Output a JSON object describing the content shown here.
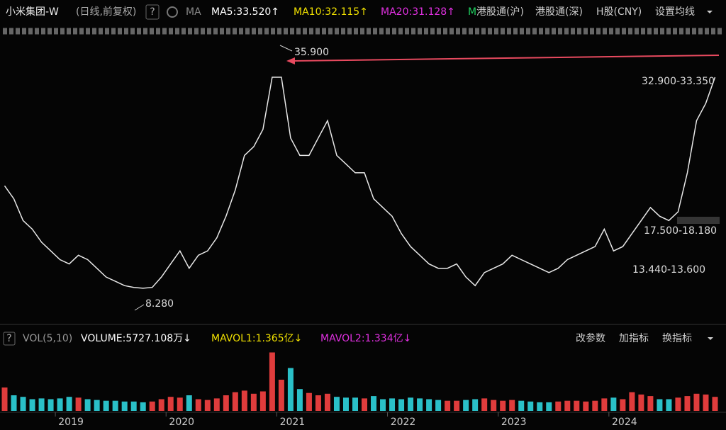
{
  "header": {
    "title": "小米集团-W",
    "mode": "(日线,前复权)",
    "help": "?",
    "ma_label": "MA",
    "ma5": "MA5:33.520↑",
    "ma10": "MA10:32.115↑",
    "ma20": "MA20:31.128↑",
    "ma60": "M",
    "links": [
      "港股通(沪)",
      "港股通(深)",
      "H股(CNY)",
      "设置均线"
    ]
  },
  "volume_header": {
    "help": "?",
    "label": "VOL(5,10)",
    "volume": "VOLUME:5727.108万↓",
    "mavol1": "MAVOL1:1.365亿↓",
    "mavol2": "MAVOL2:1.334亿↓",
    "buttons": [
      "改参数",
      "加指标",
      "换指标"
    ]
  },
  "chart_data": [
    {
      "type": "line",
      "color": "#e8e8e8",
      "ylim": [
        6,
        37
      ],
      "categories": [
        null,
        null,
        null,
        null,
        null,
        null,
        "2019",
        null,
        null,
        null,
        null,
        null,
        null,
        null,
        null,
        null,
        null,
        null,
        "2020",
        null,
        null,
        null,
        null,
        null,
        null,
        null,
        null,
        null,
        null,
        null,
        "2021",
        null,
        null,
        null,
        null,
        null,
        null,
        null,
        null,
        null,
        null,
        null,
        "2022",
        null,
        null,
        null,
        null,
        null,
        null,
        null,
        null,
        null,
        null,
        null,
        "2023",
        null,
        null,
        null,
        null,
        null,
        null,
        null,
        null,
        null,
        null,
        null,
        "2024",
        null,
        null,
        null,
        null,
        null,
        null,
        null,
        null,
        null,
        null,
        null
      ],
      "values": [
        20.5,
        19,
        16.5,
        15.5,
        14,
        13,
        12,
        11.5,
        12.5,
        12,
        11,
        10,
        9.5,
        9,
        8.8,
        8.7,
        8.8,
        10,
        11.5,
        13,
        11,
        12.5,
        13,
        14.5,
        17,
        20,
        24,
        25,
        27,
        33,
        33,
        26,
        24,
        24,
        26,
        28,
        24,
        23,
        22,
        22,
        19,
        18,
        17,
        15,
        13.5,
        12.5,
        11.5,
        11,
        11,
        11.5,
        10,
        9,
        10.5,
        11,
        11.5,
        12.5,
        12,
        11.5,
        11,
        10.5,
        11,
        12,
        12.5,
        13,
        13.5,
        15.5,
        13,
        13.5,
        15,
        16.5,
        18,
        17,
        16.5,
        17.5,
        22,
        28,
        30,
        33
      ],
      "annotations": [
        "35.900",
        "8.280",
        "32.900-33.350",
        "17.500-18.180",
        "13.440-13.600"
      ]
    },
    {
      "type": "bar",
      "ylim": [
        0,
        8
      ],
      "values": [
        3,
        2,
        1.8,
        1.5,
        1.6,
        1.5,
        1.6,
        1.8,
        1.7,
        1.5,
        1.4,
        1.3,
        1.3,
        1.2,
        1.2,
        1.1,
        1.2,
        1.5,
        1.8,
        1.7,
        2,
        1.5,
        1.4,
        1.6,
        2,
        2.4,
        2.6,
        2.2,
        2.5,
        7.5,
        4,
        5.5,
        2.8,
        2.3,
        2,
        2.2,
        1.8,
        1.7,
        1.7,
        1.6,
        1.9,
        1.5,
        1.6,
        1.5,
        1.7,
        1.6,
        1.5,
        1.4,
        1.3,
        1.3,
        1.4,
        1.5,
        1.6,
        1.4,
        1.3,
        1.4,
        1.3,
        1.2,
        1.1,
        1.1,
        1.2,
        1.3,
        1.3,
        1.2,
        1.3,
        1.6,
        1.7,
        1.5,
        2.4,
        2.1,
        1.9,
        1.5,
        1.5,
        1.7,
        1.9,
        2.2,
        2.1,
        1.8
      ]
    }
  ]
}
